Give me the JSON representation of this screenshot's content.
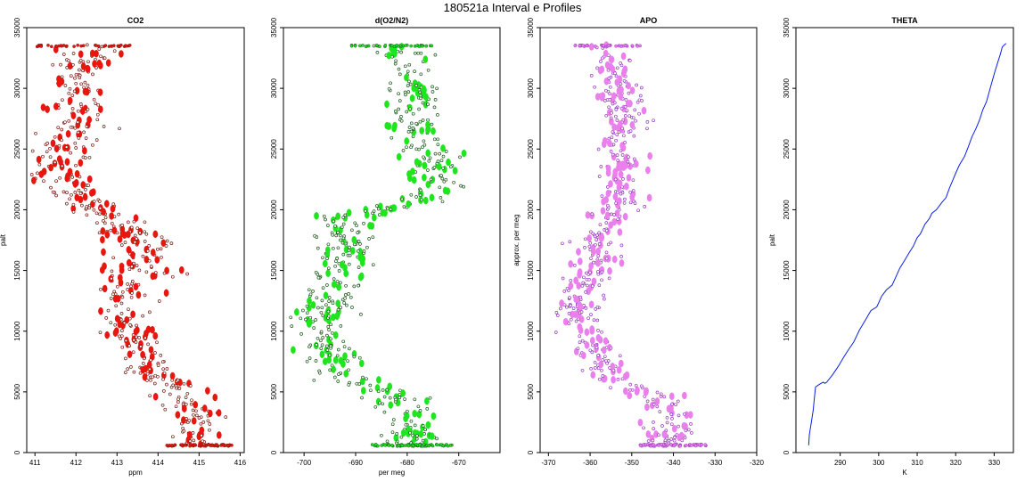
{
  "figure": {
    "title": "180521a   Interval e Profiles"
  },
  "chart_data": [
    {
      "type": "scatter",
      "title": "CO2",
      "xlabel": "ppm",
      "ylabel": "palt",
      "xlim": [
        410.8,
        416.1
      ],
      "ylim": [
        0,
        35000
      ],
      "xticks": [
        411,
        412,
        413,
        414,
        415,
        416
      ],
      "yticks": [
        0,
        5000,
        10000,
        15000,
        20000,
        25000,
        30000,
        35000
      ],
      "color": "#e8160e",
      "edge_color": "#7a1a12",
      "profile": [
        [
          33500,
          412.2,
          0.6
        ],
        [
          31500,
          412.1,
          0.5
        ],
        [
          29500,
          412.0,
          0.5
        ],
        [
          27500,
          412.0,
          0.6
        ],
        [
          26000,
          411.9,
          0.5
        ],
        [
          24500,
          411.6,
          0.6
        ],
        [
          23300,
          411.4,
          0.6
        ],
        [
          21500,
          411.9,
          0.5
        ],
        [
          20000,
          412.5,
          0.5
        ],
        [
          18500,
          413.3,
          0.5
        ],
        [
          17000,
          413.6,
          0.6
        ],
        [
          15500,
          413.7,
          0.6
        ],
        [
          14000,
          413.3,
          0.6
        ],
        [
          12500,
          413.2,
          0.5
        ],
        [
          11000,
          413.2,
          0.6
        ],
        [
          9500,
          413.3,
          0.5
        ],
        [
          8000,
          413.6,
          0.5
        ],
        [
          6500,
          414.0,
          0.5
        ],
        [
          5000,
          414.6,
          0.5
        ],
        [
          3500,
          414.9,
          0.5
        ],
        [
          2000,
          414.9,
          0.4
        ],
        [
          600,
          415.0,
          0.4
        ]
      ]
    },
    {
      "type": "scatter",
      "title": "d(O2/N2)",
      "xlabel": "per meg",
      "ylabel": "",
      "xlim": [
        -704,
        -662
      ],
      "ylim": [
        0,
        35000
      ],
      "xticks": [
        -700,
        -690,
        -680,
        -670
      ],
      "yticks": [
        0,
        5000,
        10000,
        15000,
        20000,
        25000,
        30000,
        35000
      ],
      "color": "#1ee51e",
      "edge_color": "#1a5a1a",
      "profile": [
        [
          33500,
          -683,
          4
        ],
        [
          31500,
          -680,
          4
        ],
        [
          29500,
          -678,
          4
        ],
        [
          27500,
          -677,
          4
        ],
        [
          26000,
          -679,
          4
        ],
        [
          24500,
          -675,
          4
        ],
        [
          22500,
          -675,
          4
        ],
        [
          21000,
          -677,
          4
        ],
        [
          19500,
          -690,
          5
        ],
        [
          18000,
          -692,
          4
        ],
        [
          16500,
          -692,
          4
        ],
        [
          15000,
          -693,
          4
        ],
        [
          13500,
          -695,
          4
        ],
        [
          12000,
          -696,
          4
        ],
        [
          10500,
          -697,
          4
        ],
        [
          9000,
          -695,
          4
        ],
        [
          7500,
          -694,
          4
        ],
        [
          6000,
          -691,
          4
        ],
        [
          4500,
          -681,
          4
        ],
        [
          3000,
          -679,
          4
        ],
        [
          1500,
          -679,
          4
        ],
        [
          600,
          -679,
          4
        ]
      ]
    },
    {
      "type": "scatter",
      "title": "APO",
      "xlabel": "",
      "ylabel": "approx. per meg",
      "xlim": [
        -372,
        -320
      ],
      "ylim": [
        0,
        35000
      ],
      "xticks": [
        -370,
        -360,
        -350,
        -340,
        -330,
        -320
      ],
      "yticks": [
        0,
        5000,
        10000,
        15000,
        20000,
        25000,
        30000,
        35000
      ],
      "color": "#ea80ec",
      "edge_color": "#9a3ac0",
      "profile": [
        [
          33500,
          -356,
          4
        ],
        [
          31500,
          -354,
          4
        ],
        [
          29500,
          -353,
          4
        ],
        [
          27500,
          -352,
          4
        ],
        [
          26000,
          -352,
          4
        ],
        [
          24500,
          -352,
          4
        ],
        [
          22500,
          -352,
          4
        ],
        [
          21000,
          -352,
          4
        ],
        [
          19500,
          -355,
          4
        ],
        [
          18000,
          -359,
          4
        ],
        [
          16500,
          -358,
          4
        ],
        [
          15000,
          -359,
          4
        ],
        [
          13500,
          -362,
          4
        ],
        [
          12000,
          -362,
          4
        ],
        [
          10500,
          -361,
          4
        ],
        [
          9000,
          -361,
          4
        ],
        [
          7500,
          -358,
          4
        ],
        [
          6000,
          -354,
          4
        ],
        [
          4500,
          -344,
          4
        ],
        [
          3000,
          -341,
          4
        ],
        [
          1500,
          -341,
          4
        ],
        [
          600,
          -340,
          4
        ]
      ]
    },
    {
      "type": "line",
      "title": "THETA",
      "xlabel": "K",
      "ylabel": "palt",
      "xlim": [
        278.5,
        335
      ],
      "ylim": [
        0,
        35000
      ],
      "xticks": [
        290,
        300,
        310,
        320,
        330
      ],
      "yticks": [
        0,
        5000,
        10000,
        15000,
        20000,
        25000,
        30000,
        35000
      ],
      "color": "#0a1ee8",
      "x": [
        281.8,
        282.0,
        282.5,
        283.0,
        283.3,
        283.6,
        284.5,
        285.0,
        285.6,
        286.0,
        286.5,
        288.0,
        289.5,
        290.8,
        292.0,
        293.5,
        295.0,
        296.7,
        298.0,
        299.5,
        300.8,
        302.0,
        303.5,
        304.5,
        305.5,
        306.5,
        307.8,
        309.0,
        310.0,
        310.8,
        312.0,
        313.2,
        313.8,
        315.0,
        316.4,
        317.5,
        318.4,
        319.2,
        320.0,
        321.0,
        322.3,
        323.3,
        324.2,
        325.3,
        326.2,
        327.0,
        328.0,
        328.8,
        329.5,
        330.2,
        331.0,
        331.7,
        332.1,
        332.7,
        333.1
      ],
      "y": [
        600,
        1500,
        2500,
        3500,
        4500,
        5400,
        5600,
        5700,
        5800,
        5700,
        5800,
        6400,
        7100,
        7800,
        8400,
        9100,
        10100,
        11000,
        11700,
        12000,
        12900,
        13400,
        13800,
        14500,
        15200,
        15700,
        16400,
        17000,
        17700,
        18000,
        18800,
        19300,
        19700,
        20000,
        20600,
        21000,
        21800,
        22400,
        23000,
        23700,
        24400,
        25200,
        26000,
        26700,
        27400,
        28200,
        28900,
        29800,
        30600,
        31400,
        32200,
        32900,
        33400,
        33600,
        33700
      ]
    }
  ]
}
